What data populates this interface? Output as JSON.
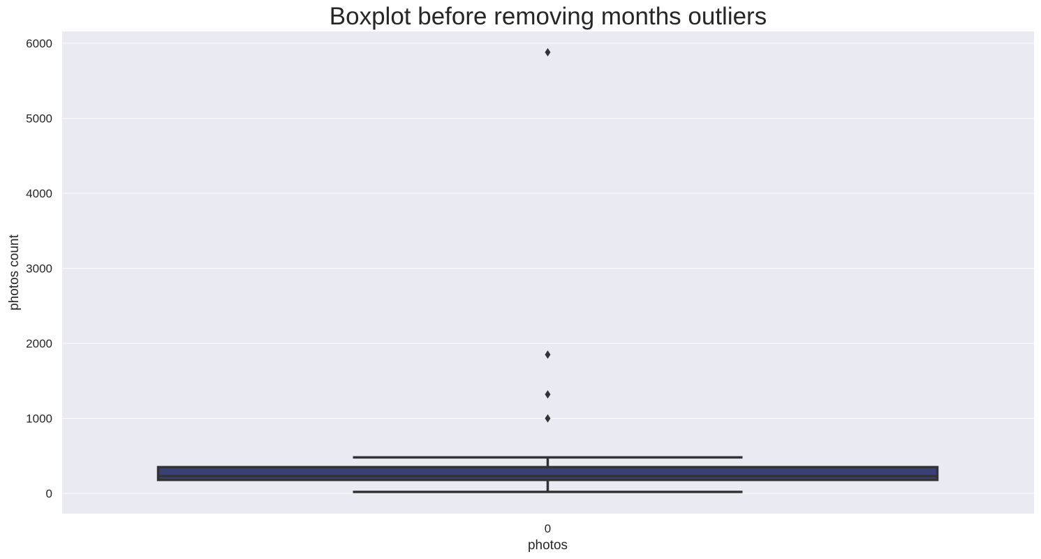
{
  "chart_data": {
    "type": "boxplot",
    "title": "Boxplot before removing months outliers",
    "xlabel": "photos",
    "ylabel": "photos count",
    "categories": [
      "0"
    ],
    "ylim": [
      -270,
      6160
    ],
    "yticks": [
      "0",
      "1000",
      "2000",
      "3000",
      "4000",
      "5000",
      "6000"
    ],
    "grid": true,
    "box": {
      "category": "0",
      "whisker_low": 20,
      "q1": 180,
      "median": 230,
      "q3": 350,
      "whisker_high": 480,
      "outliers": [
        1000,
        1320,
        1850,
        5880
      ]
    },
    "colors": {
      "background": "#eaeaf2",
      "box_fill": "#3b3f78",
      "line": "#333333",
      "grid": "#ffffff"
    }
  }
}
